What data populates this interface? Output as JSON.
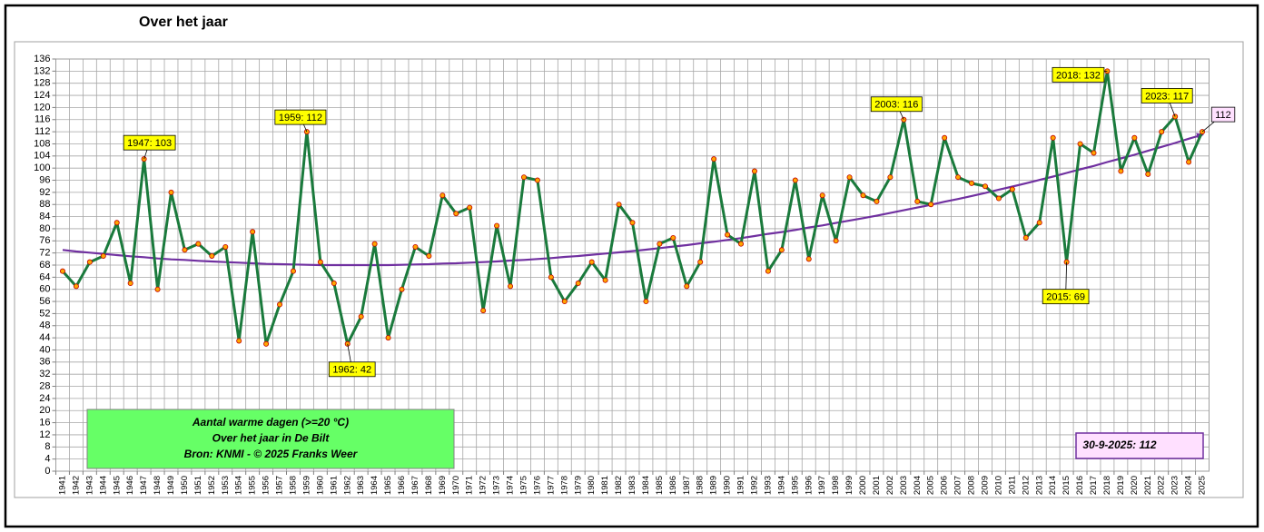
{
  "chart_data": {
    "type": "line",
    "title": "Over het jaar",
    "categories": [
      "1941",
      "1942",
      "1943",
      "1944",
      "1945",
      "1946",
      "1947",
      "1948",
      "1949",
      "1950",
      "1951",
      "1952",
      "1953",
      "1954",
      "1955",
      "1956",
      "1957",
      "1958",
      "1959",
      "1960",
      "1961",
      "1962",
      "1963",
      "1964",
      "1965",
      "1966",
      "1967",
      "1968",
      "1969",
      "1970",
      "1971",
      "1972",
      "1973",
      "1974",
      "1975",
      "1976",
      "1977",
      "1978",
      "1979",
      "1980",
      "1981",
      "1982",
      "1983",
      "1984",
      "1985",
      "1986",
      "1987",
      "1988",
      "1989",
      "1990",
      "1991",
      "1992",
      "1993",
      "1994",
      "1995",
      "1996",
      "1997",
      "1998",
      "1999",
      "2000",
      "2001",
      "2002",
      "2003",
      "2004",
      "2005",
      "2006",
      "2007",
      "2008",
      "2009",
      "2010",
      "2011",
      "2012",
      "2013",
      "2014",
      "2015",
      "2016",
      "2017",
      "2018",
      "2019",
      "2020",
      "2021",
      "2022",
      "2023",
      "2024",
      "2025"
    ],
    "series": [
      {
        "color": "#1a7a3c",
        "values": [
          66,
          61,
          69,
          71,
          82,
          62,
          103,
          60,
          92,
          73,
          75,
          71,
          74,
          43,
          79,
          42,
          55,
          66,
          112,
          69,
          62,
          42,
          51,
          75,
          44,
          60,
          74,
          71,
          91,
          85,
          87,
          53,
          81,
          61,
          97,
          96,
          64,
          56,
          62,
          69,
          63,
          88,
          82,
          56,
          75,
          77,
          61,
          69,
          103,
          78,
          75,
          99,
          66,
          73,
          96,
          70,
          91,
          76,
          97,
          91,
          89,
          97,
          116,
          89,
          88,
          110,
          97,
          95,
          94,
          90,
          93,
          77,
          82,
          110,
          69,
          108,
          105,
          132,
          99,
          110,
          98,
          112,
          117,
          102,
          112
        ]
      },
      {
        "color": "#7030a0",
        "values": [
          73.0,
          72.5,
          72.1,
          71.7,
          71.3,
          70.9,
          70.6,
          70.2,
          69.9,
          69.7,
          69.4,
          69.2,
          69.0,
          68.8,
          68.6,
          68.4,
          68.3,
          68.2,
          68.1,
          68.0,
          68.0,
          68.0,
          68.0,
          68.0,
          68.0,
          68.1,
          68.2,
          68.3,
          68.5,
          68.6,
          68.8,
          69.0,
          69.2,
          69.5,
          69.7,
          70.0,
          70.3,
          70.7,
          71.0,
          71.4,
          71.8,
          72.2,
          72.6,
          73.1,
          73.6,
          74.1,
          74.6,
          75.2,
          75.7,
          76.3,
          76.9,
          77.6,
          78.3,
          78.9,
          79.6,
          80.4,
          81.1,
          81.9,
          82.7,
          83.5,
          84.3,
          85.2,
          86.1,
          87.0,
          87.9,
          88.9,
          89.8,
          90.8,
          91.8,
          92.9,
          93.9,
          95.0,
          96.1,
          97.2,
          98.4,
          99.6,
          100.7,
          102.0,
          103.2,
          104.4,
          105.7,
          107.0,
          108.3,
          109.7,
          111.0
        ]
      }
    ],
    "ylim": [
      0,
      136
    ],
    "yticks": [
      0,
      4,
      8,
      12,
      16,
      20,
      24,
      28,
      32,
      36,
      40,
      44,
      48,
      52,
      56,
      60,
      64,
      68,
      72,
      76,
      80,
      84,
      88,
      92,
      96,
      100,
      104,
      108,
      112,
      116,
      120,
      124,
      128,
      132,
      136
    ],
    "grid": true,
    "annotations": [
      "1947: 103",
      "1959: 112",
      "1962: 42",
      "2003: 116",
      "2015: 69",
      "2018: 132",
      "2023: 117",
      "112"
    ],
    "info_box": [
      "Aantal warme dagen (>=20 °C)",
      "Over het jaar  in De Bilt",
      "Bron: KNMI -    © 2025 Franks Weer"
    ],
    "date_box": "30-9-2025: 112"
  }
}
